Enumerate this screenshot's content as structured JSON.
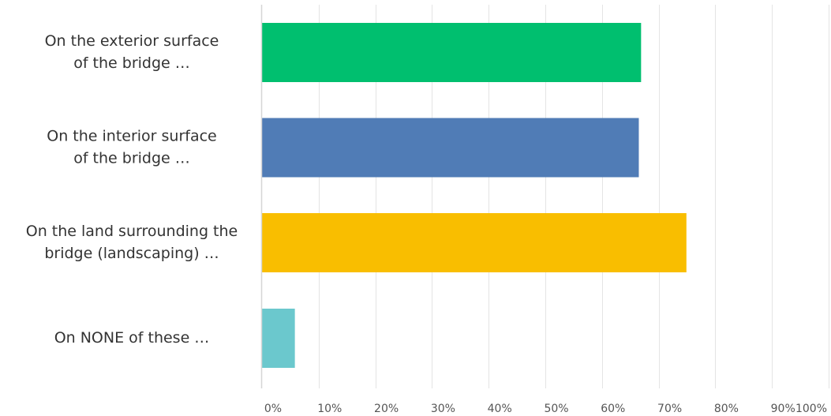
{
  "chart_data": {
    "type": "bar",
    "orientation": "horizontal",
    "categories": [
      [
        "On the exterior surface",
        "of the bridge …"
      ],
      [
        "On the interior surface",
        "of the bridge …"
      ],
      [
        "On the land surrounding the",
        "bridge (landscaping) …"
      ],
      [
        "On NONE of these …"
      ]
    ],
    "values": [
      66.9,
      66.5,
      74.9,
      5.8
    ],
    "colors": [
      "#00bf6f",
      "#507cb6",
      "#f9be00",
      "#6bc8cd"
    ],
    "xlim": [
      0,
      100
    ],
    "xticks": [
      0,
      10,
      20,
      30,
      40,
      50,
      60,
      70,
      80,
      90,
      100
    ],
    "xtick_labels": [
      "0%",
      "10%",
      "20%",
      "30%",
      "40%",
      "50%",
      "60%",
      "70%",
      "80%",
      "90%",
      "100%"
    ],
    "grid": "vertical",
    "title": "",
    "xlabel": "",
    "ylabel": ""
  }
}
